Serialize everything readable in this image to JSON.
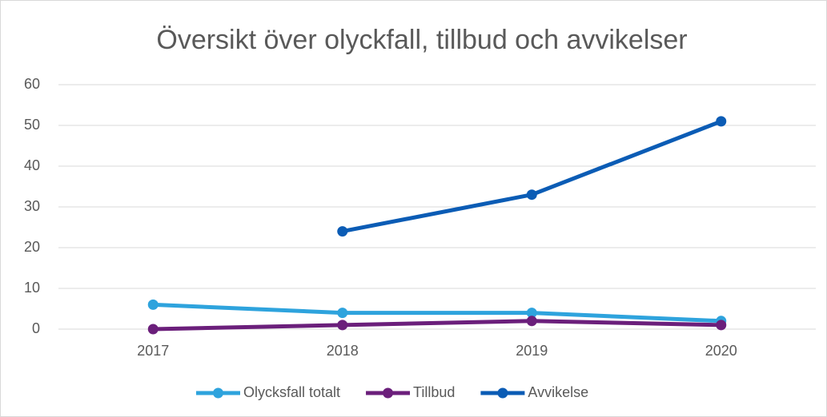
{
  "chart_data": {
    "type": "line",
    "title": "Översikt över olyckfall, tillbud och avvikelser",
    "categories": [
      "2017",
      "2018",
      "2019",
      "2020"
    ],
    "series": [
      {
        "name": "Olycksfall totalt",
        "color": "#2ea3dd",
        "values": [
          6,
          4,
          4,
          2
        ]
      },
      {
        "name": "Tillbud",
        "color": "#6b1f7b",
        "values": [
          0,
          1,
          2,
          1
        ]
      },
      {
        "name": "Avvikelse",
        "color": "#0b5cb5",
        "values": [
          null,
          24,
          33,
          51
        ]
      }
    ],
    "ylim": [
      0,
      60
    ],
    "yticks": [
      0,
      10,
      20,
      30,
      40,
      50,
      60
    ],
    "grid": true,
    "legend": "bottom"
  }
}
